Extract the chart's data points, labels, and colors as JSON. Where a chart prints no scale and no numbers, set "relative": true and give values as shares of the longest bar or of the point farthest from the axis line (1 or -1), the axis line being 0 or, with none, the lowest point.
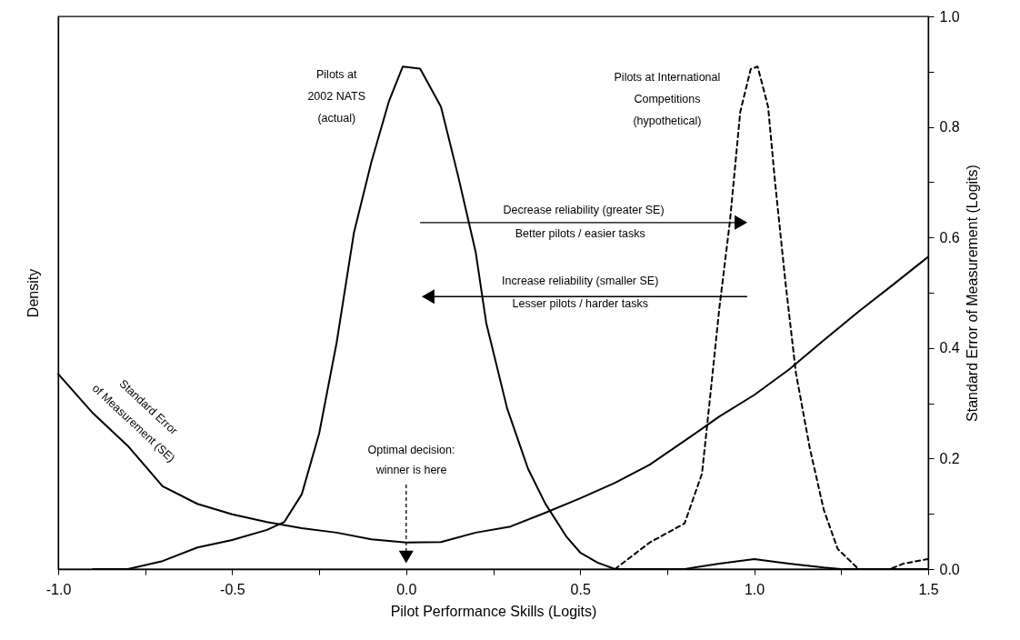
{
  "chart_data": {
    "type": "line",
    "relative": true,
    "xlabel": "Pilot Performance Skills (Logits)",
    "ylabel": "Density",
    "y2label": "Standard Error of Measurement (Logits)",
    "xlim": [
      -1,
      1.5
    ],
    "xticks": [
      {
        "value": -1,
        "label": "-1.0"
      },
      {
        "value": -0.75,
        "label": null
      },
      {
        "value": -0.5,
        "label": "-0.5"
      },
      {
        "value": -0.25,
        "label": null
      },
      {
        "value": 0,
        "label": "0.0"
      },
      {
        "value": 0.25,
        "label": null
      },
      {
        "value": 0.5,
        "label": "0.5"
      },
      {
        "value": 0.75,
        "label": null
      },
      {
        "value": 1,
        "label": "1.0"
      },
      {
        "value": 1.25,
        "label": null
      },
      {
        "value": 1.5,
        "label": "1.5"
      }
    ],
    "y2lim": [
      0,
      1
    ],
    "y2ticks": [
      {
        "value": 0,
        "label": "0.0"
      },
      {
        "value": 0.1,
        "label": null
      },
      {
        "value": 0.2,
        "label": "0.2"
      },
      {
        "value": 0.3,
        "label": null
      },
      {
        "value": 0.4,
        "label": "0.4"
      },
      {
        "value": 0.5,
        "label": null
      },
      {
        "value": 0.6,
        "label": "0.6"
      },
      {
        "value": 0.7,
        "label": null
      },
      {
        "value": 0.8,
        "label": "0.8"
      },
      {
        "value": 0.9,
        "label": null
      },
      {
        "value": 1,
        "label": "1.0"
      }
    ],
    "marker": "none",
    "series": [
      {
        "name": "Pilots at\n2002 NATS\n(actual)",
        "color": "#000000",
        "line_style": "solid",
        "x": [
          -0.9,
          -0.8,
          -0.7,
          -0.6,
          -0.5,
          -0.4,
          -0.35,
          -0.3,
          -0.25,
          -0.2,
          -0.15,
          -0.1,
          -0.05,
          -0.01,
          0.04,
          0.1,
          0.15,
          0.2,
          0.23,
          0.29,
          0.35,
          0.4,
          0.46,
          0.5,
          0.55,
          0.6,
          0.8,
          0.9,
          1.0,
          1.1,
          1.2,
          1.25,
          1.5
        ],
        "values": [
          0,
          0,
          0.016,
          0.043,
          0.058,
          0.078,
          0.094,
          0.149,
          0.27,
          0.45,
          0.67,
          0.81,
          0.93,
          1,
          0.996,
          0.92,
          0.78,
          0.63,
          0.49,
          0.32,
          0.2,
          0.13,
          0.065,
          0.033,
          0.013,
          0,
          0,
          0.011,
          0.02,
          0.011,
          0.003,
          0,
          0
        ]
      },
      {
        "name": "Pilots at International\nCompetitions\n(hypothetical)",
        "color": "#000000",
        "line_style": "dashed",
        "x": [
          0.6,
          0.7,
          0.8,
          0.85,
          0.87,
          0.9,
          0.93,
          0.96,
          0.99,
          1.01,
          1.04,
          1.06,
          1.09,
          1.12,
          1.16,
          1.2,
          1.24,
          1.3,
          1.39,
          1.43,
          1.5
        ],
        "values": [
          0,
          0.053,
          0.091,
          0.19,
          0.32,
          0.52,
          0.69,
          0.91,
          0.995,
          1,
          0.92,
          0.77,
          0.57,
          0.39,
          0.24,
          0.118,
          0.04,
          0,
          0,
          0.011,
          0.02
        ]
      },
      {
        "name": "Standard Error\nof Measurement (SE)",
        "color": "#000000",
        "line_style": "solid",
        "axis": "y2",
        "x": [
          -1,
          -0.9,
          -0.8,
          -0.7,
          -0.6,
          -0.5,
          -0.4,
          -0.3,
          -0.2,
          -0.1,
          0,
          0.1,
          0.2,
          0.3,
          0.4,
          0.5,
          0.6,
          0.7,
          0.8,
          0.9,
          1,
          1.1,
          1.2,
          1.3,
          1.4,
          1.5
        ],
        "values": [
          0.353,
          0.282,
          0.223,
          0.15,
          0.118,
          0.099,
          0.085,
          0.074,
          0.066,
          0.054,
          0.048,
          0.049,
          0.066,
          0.077,
          0.102,
          0.128,
          0.156,
          0.189,
          0.232,
          0.276,
          0.315,
          0.361,
          0.414,
          0.466,
          0.515,
          0.565
        ]
      }
    ],
    "annotations": [
      "Optimal decision:\nwinner is here",
      "Decrease reliability (greater SE)",
      "Better pilots / easier tasks",
      "Increase reliability (smaller SE)",
      "Lesser pilots / harder tasks"
    ]
  }
}
